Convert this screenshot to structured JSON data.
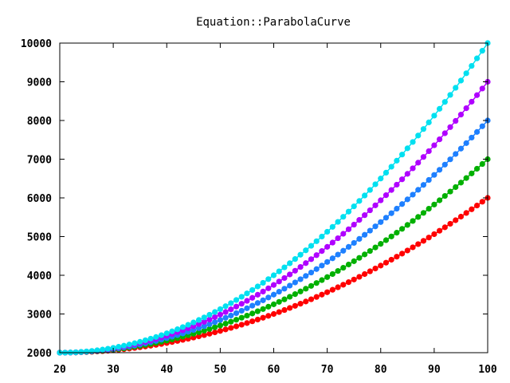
{
  "chart_data": {
    "type": "line",
    "title": "Equation::ParabolaCurve",
    "xlabel": "",
    "ylabel": "",
    "xlim": [
      20,
      100
    ],
    "ylim": [
      2000,
      10000
    ],
    "x_ticks": [
      "20",
      "30",
      "40",
      "50",
      "60",
      "70",
      "80",
      "90",
      "100"
    ],
    "y_ticks": [
      "2000",
      "3000",
      "4000",
      "5000",
      "6000",
      "7000",
      "8000",
      "9000",
      "10000"
    ],
    "grid": false,
    "legend": "none",
    "x_step": 1,
    "series": [
      {
        "color": "#ff0000",
        "x0": 20,
        "y0": 2000,
        "x1": 100,
        "y1": 6000
      },
      {
        "color": "#00b000",
        "x0": 20,
        "y0": 2000,
        "x1": 100,
        "y1": 7000
      },
      {
        "color": "#1e80ff",
        "x0": 20,
        "y0": 2000,
        "x1": 100,
        "y1": 8000
      },
      {
        "color": "#b000ff",
        "x0": 20,
        "y0": 2000,
        "x1": 100,
        "y1": 9000
      },
      {
        "color": "#00e0f0",
        "x0": 20,
        "y0": 2000,
        "x1": 100,
        "y1": 10000
      }
    ]
  }
}
